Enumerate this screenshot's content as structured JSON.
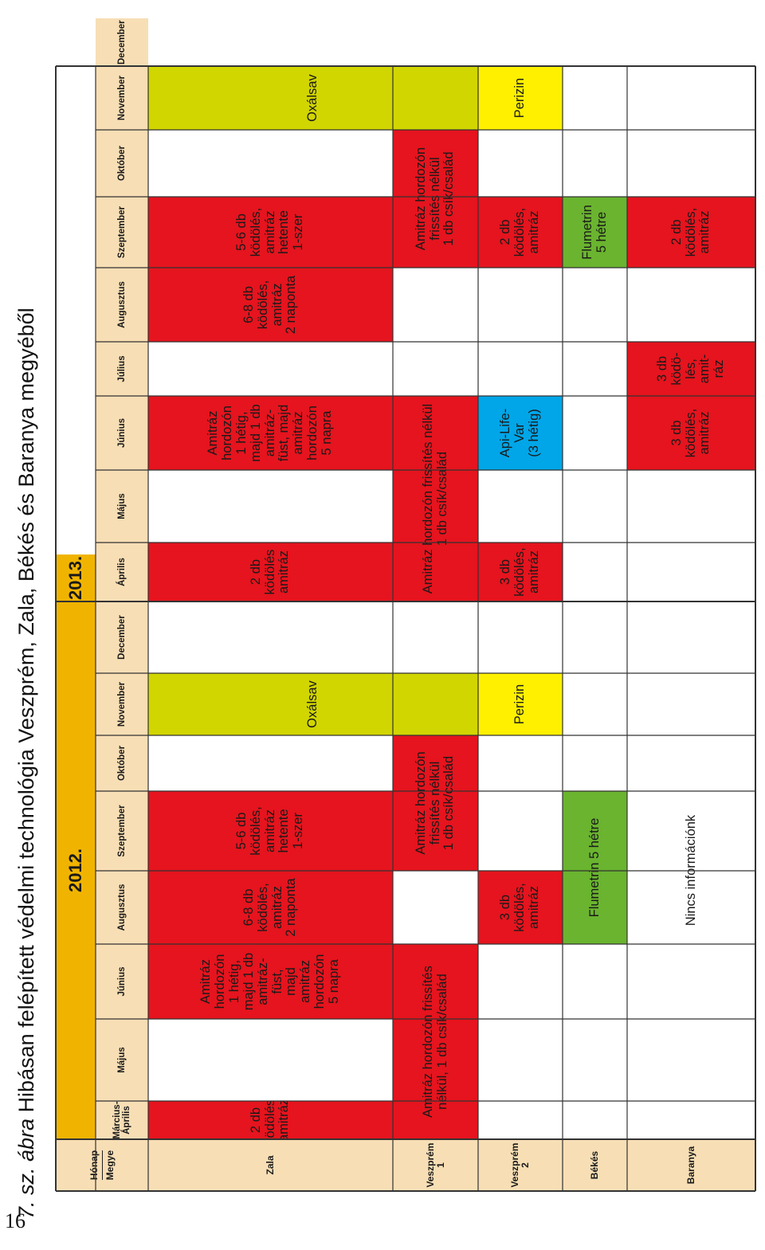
{
  "page_number": "16",
  "figure_title": {
    "prefix": "7. sz. ábra",
    "text": " Hibásan felépített védelmi technológia Veszprém, Zala, Békés és Baranya megyéből"
  },
  "corner": {
    "top": "Hónap",
    "bottom": "Megye"
  },
  "years": [
    "2012.",
    "2013."
  ],
  "months_2012": [
    "Március-Április",
    "Május",
    "Június",
    "Augusztus",
    "Szeptember",
    "Október",
    "November",
    "December"
  ],
  "months_2013": [
    "Április",
    "Május",
    "Június",
    "Július",
    "Augusztus",
    "Szeptember",
    "Október",
    "November",
    "December"
  ],
  "counties": [
    "Zala",
    "Veszprém 1",
    "Veszprém 2",
    "Békés",
    "Baranya"
  ],
  "colors": {
    "header_orange": "#f0b400",
    "header_beige": "#f7deb5",
    "treatment_red": "#e5141e",
    "oxalic_lime": "#d1d500",
    "perizin_yellow": "#fff000",
    "apilifevar_blue": "#00a6e8",
    "flumetrin_green": "#6ab42f",
    "grid": "#333333"
  },
  "rows": {
    "zala": {
      "c1": "2 db\nködölés,\namitráz",
      "c2": "Amitráz\nhordozón\n1 hétig,\nmajd 1 db\namitráz-\nfüst,\nmajd\namitráz\nhordozón\n5 napra",
      "c3": "6-8 db\nködölés,\namitráz\n2 naponta",
      "c4": "5-6 db\nködölés,\namitráz\nhetente\n1-szer",
      "c5": "Oxálsav",
      "c6": "2 db\nködölés\namitráz",
      "c7": "Amitráz\nhordozón\n1 hétig,\nmajd 1 db\namitráz-\nfüst, majd\namitráz\nhordozón\n5 napra",
      "c8": "6-8 db\nködölés,\namitráz\n2 naponta",
      "c9": "5-6 db\nködölés,\namitráz\nhetente\n1-szer",
      "c10": "Oxálsav"
    },
    "veszprem1": {
      "c1": "Amitráz hordozón frissítés\nnélkül, 1 db csík/család",
      "c2": "Amitráz hordozón\nfrissítés nélkül\n1 db csík/család",
      "c3": "Amitráz hordozón frissítés nélkül\n1 db csík/család",
      "c4": "Amitráz hordozón\nfrissítés nélkül\n1 db csík/család"
    },
    "veszprem2": {
      "c1": "3 db\nködölés,\namitráz",
      "c2": "Perizin",
      "c3": "3 db\nködölés,\namitráz",
      "c4": "Api-Life-\nVar\n(3 hétig)",
      "c5": "2 db\nködölés,\namitráz",
      "c6": "Perizin"
    },
    "bekes": {
      "c1": "Flumetrin 5 hétre",
      "c2": "Flumetrin\n5 hétre"
    },
    "baranya": {
      "c1": "Nincs információnk",
      "c2": "3 db\nködölés,\namitráz",
      "c3": "3 db\nködö-\nlés,\namit-\nráz",
      "c4": "2 db\nködölés,\namitráz"
    }
  }
}
